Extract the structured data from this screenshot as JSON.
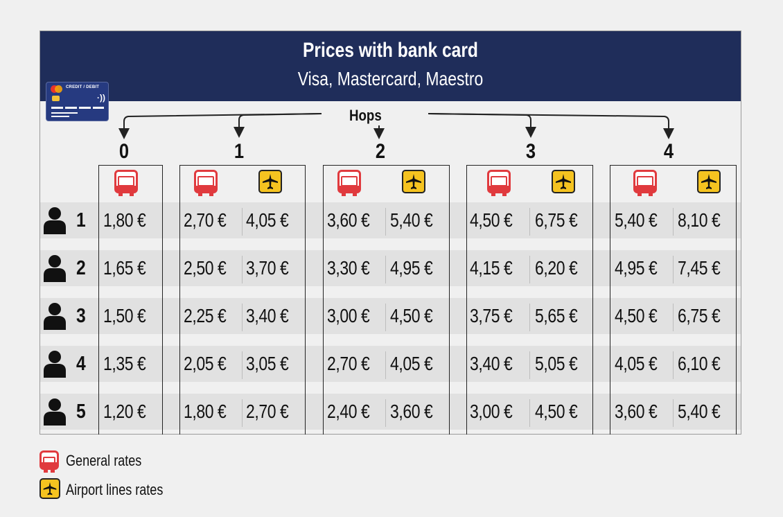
{
  "header": {
    "title": "Prices with bank card",
    "subtitle": "Visa, Mastercard, Maestro",
    "card_label": "CREDIT / DEBIT",
    "card_contactless": "·))"
  },
  "hops": {
    "label": "Hops",
    "numbers": [
      "0",
      "1",
      "2",
      "3",
      "4"
    ]
  },
  "icons": {
    "general": "bus-icon",
    "airport": "plane-icon",
    "person": "person-icon"
  },
  "colors": {
    "header_bg": "#1f2d5a",
    "bus_red": "#e03a3e",
    "plane_yellow": "#f5c320",
    "stripe": "#e1e1e1",
    "background": "#f0f0f0"
  },
  "rows": [
    {
      "persons": "1",
      "prices": [
        "1,80 €",
        "2,70 €",
        "4,05 €",
        "3,60 €",
        "5,40 €",
        "4,50 €",
        "6,75 €",
        "5,40 €",
        "8,10 €"
      ]
    },
    {
      "persons": "2",
      "prices": [
        "1,65 €",
        "2,50 €",
        "3,70 €",
        "3,30 €",
        "4,95 €",
        "4,15 €",
        "6,20 €",
        "4,95 €",
        "7,45 €"
      ]
    },
    {
      "persons": "3",
      "prices": [
        "1,50 €",
        "2,25 €",
        "3,40 €",
        "3,00 €",
        "4,50 €",
        "3,75 €",
        "5,65 €",
        "4,50 €",
        "6,75 €"
      ]
    },
    {
      "persons": "4",
      "prices": [
        "1,35 €",
        "2,05 €",
        "3,05 €",
        "2,70 €",
        "4,05 €",
        "3,40 €",
        "5,05 €",
        "4,05 €",
        "6,10 €"
      ]
    },
    {
      "persons": "5",
      "prices": [
        "1,20 €",
        "1,80 €",
        "2,70 €",
        "2,40 €",
        "3,60 €",
        "3,00 €",
        "4,50 €",
        "3,60 €",
        "5,40 €"
      ]
    }
  ],
  "legend": {
    "general": "General rates",
    "airport": "Airport lines rates"
  }
}
